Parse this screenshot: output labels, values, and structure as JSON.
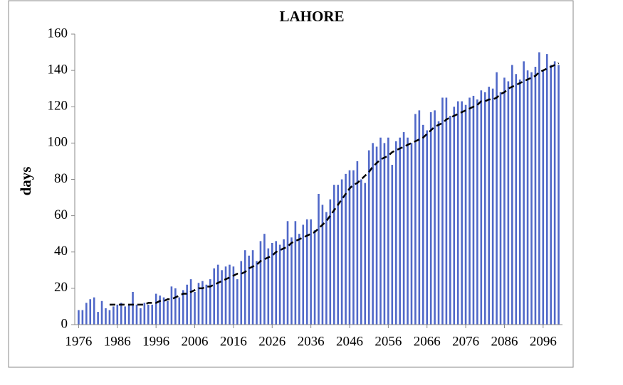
{
  "chart_data": {
    "type": "bar",
    "title": "LAHORE",
    "ylabel": "days",
    "x": [
      1976,
      1977,
      1978,
      1979,
      1980,
      1981,
      1982,
      1983,
      1984,
      1985,
      1986,
      1987,
      1988,
      1989,
      1990,
      1991,
      1992,
      1993,
      1994,
      1995,
      1996,
      1997,
      1998,
      1999,
      2000,
      2001,
      2002,
      2003,
      2004,
      2005,
      2006,
      2007,
      2008,
      2009,
      2010,
      2011,
      2012,
      2013,
      2014,
      2015,
      2016,
      2017,
      2018,
      2019,
      2020,
      2021,
      2022,
      2023,
      2024,
      2025,
      2026,
      2027,
      2028,
      2029,
      2030,
      2031,
      2032,
      2033,
      2034,
      2035,
      2036,
      2037,
      2038,
      2039,
      2040,
      2041,
      2042,
      2043,
      2044,
      2045,
      2046,
      2047,
      2048,
      2049,
      2050,
      2051,
      2052,
      2053,
      2054,
      2055,
      2056,
      2057,
      2058,
      2059,
      2060,
      2061,
      2062,
      2063,
      2064,
      2065,
      2066,
      2067,
      2068,
      2069,
      2070,
      2071,
      2072,
      2073,
      2074,
      2075,
      2076,
      2077,
      2078,
      2079,
      2080,
      2081,
      2082,
      2083,
      2084,
      2085,
      2086,
      2087,
      2088,
      2089,
      2090,
      2091,
      2092,
      2093,
      2094,
      2095,
      2096,
      2097,
      2098,
      2099,
      2100
    ],
    "series": [
      {
        "type": "bar",
        "color": "#5068c8",
        "values": [
          8,
          8,
          12,
          14,
          15,
          7,
          13,
          9,
          8,
          10,
          11,
          12,
          10,
          11,
          18,
          11,
          9,
          12,
          11,
          11,
          17,
          16,
          15,
          13,
          21,
          20,
          15,
          19,
          22,
          25,
          18,
          23,
          24,
          22,
          25,
          31,
          33,
          30,
          32,
          33,
          32,
          25,
          35,
          41,
          38,
          41,
          35,
          46,
          50,
          42,
          45,
          46,
          44,
          47,
          57,
          48,
          57,
          50,
          55,
          58,
          58,
          52,
          72,
          66,
          62,
          69,
          77,
          77,
          80,
          83,
          85,
          85,
          90,
          80,
          78,
          96,
          100,
          98,
          103,
          100,
          103,
          88,
          101,
          103,
          106,
          103,
          100,
          116,
          118,
          110,
          107,
          117,
          118,
          112,
          125,
          125,
          115,
          120,
          123,
          123,
          121,
          125,
          126,
          124,
          129,
          128,
          131,
          130,
          139,
          128,
          136,
          134,
          143,
          138,
          135,
          145,
          140,
          139,
          142,
          150,
          140,
          149,
          143,
          145,
          143
        ]
      },
      {
        "type": "line",
        "color": "#000000",
        "dashed": true,
        "values": [
          null,
          null,
          null,
          null,
          null,
          null,
          null,
          null,
          11,
          11,
          11,
          11,
          11,
          11,
          11,
          11,
          11,
          11,
          12,
          12,
          12,
          13,
          13,
          14,
          14,
          15,
          16,
          17,
          17,
          18,
          19,
          20,
          20,
          21,
          21,
          22,
          23,
          24,
          25,
          26,
          27,
          28,
          28,
          29,
          31,
          32,
          33,
          35,
          36,
          37,
          38,
          40,
          41,
          42,
          43,
          45,
          46,
          47,
          48,
          49,
          50,
          51,
          53,
          55,
          57,
          60,
          63,
          66,
          69,
          72,
          75,
          77,
          78,
          80,
          82,
          84,
          87,
          89,
          91,
          92,
          93,
          95,
          96,
          97,
          98,
          99,
          100,
          101,
          102,
          103,
          105,
          107,
          109,
          110,
          111,
          113,
          114,
          115,
          116,
          117,
          118,
          119,
          120,
          121,
          123,
          123,
          124,
          124,
          125,
          127,
          128,
          130,
          131,
          132,
          133,
          134,
          135,
          136,
          137,
          139,
          140,
          141,
          142,
          143,
          144
        ]
      }
    ],
    "xlim": [
      1975,
      2101
    ],
    "xticks": [
      1976,
      1986,
      1996,
      2006,
      2016,
      2026,
      2036,
      2046,
      2056,
      2066,
      2076,
      2086,
      2096
    ],
    "ylim": [
      0,
      160
    ],
    "yticks": [
      0,
      20,
      40,
      60,
      80,
      100,
      120,
      140,
      160
    ],
    "grid": false
  }
}
